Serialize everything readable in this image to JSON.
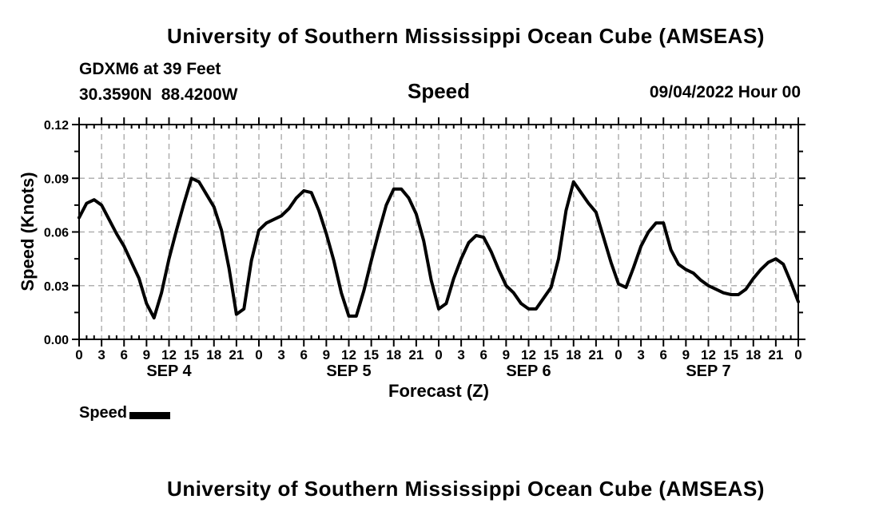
{
  "page": {
    "background": "#ffffff"
  },
  "header": {
    "main_title": "University of Southern Mississippi Ocean Cube (AMSEAS)",
    "station_name": "GDXM6 at 39 Feet",
    "station_coords": "30.3590N  88.4200W",
    "plot_title": "Speed",
    "forecast_run": "09/04/2022 Hour 00"
  },
  "footer": {
    "main_title": "University of Southern Mississippi Ocean Cube (AMSEAS)"
  },
  "legend": {
    "label": "Speed",
    "swatch_color": "#000000"
  },
  "chart_data": {
    "type": "line",
    "title": "Speed",
    "xlabel": "Forecast (Z)",
    "ylabel": "Speed (Knots)",
    "ylim": [
      0,
      0.12
    ],
    "yticks": [
      {
        "value": 0.0,
        "label": "0.00"
      },
      {
        "value": 0.03,
        "label": "0.03"
      },
      {
        "value": 0.06,
        "label": "0.06"
      },
      {
        "value": 0.09,
        "label": "0.09"
      },
      {
        "value": 0.12,
        "label": "0.12"
      }
    ],
    "y_minor_ticks": [
      0.015,
      0.045,
      0.075,
      0.105
    ],
    "x_total_hours": 96,
    "x_major_step_hours": 3,
    "x_minor_step_hours": 1,
    "xtick_labels": [
      "0",
      "3",
      "6",
      "9",
      "12",
      "15",
      "18",
      "21",
      "0",
      "3",
      "6",
      "9",
      "12",
      "15",
      "18",
      "21",
      "0",
      "3",
      "6",
      "9",
      "12",
      "15",
      "18",
      "21",
      "0",
      "3",
      "6",
      "9",
      "12",
      "15",
      "18",
      "21",
      "0"
    ],
    "day_labels": [
      {
        "label": "SEP 4",
        "center_hour": 12
      },
      {
        "label": "SEP 5",
        "center_hour": 36
      },
      {
        "label": "SEP 6",
        "center_hour": 60
      },
      {
        "label": "SEP 7",
        "center_hour": 84
      }
    ],
    "grid": {
      "color": "#b0b0b0",
      "dash": "7 5",
      "width": 1.5
    },
    "axis_color": "#000000",
    "line_width": 4,
    "legend_position": "bottom-left",
    "series": [
      {
        "name": "Speed",
        "color": "#000000",
        "x_start_hour": 0,
        "x_step_hours": 1,
        "values": [
          0.068,
          0.076,
          0.078,
          0.075,
          0.067,
          0.059,
          0.052,
          0.043,
          0.034,
          0.02,
          0.012,
          0.026,
          0.045,
          0.061,
          0.076,
          0.09,
          0.088,
          0.081,
          0.074,
          0.061,
          0.04,
          0.014,
          0.017,
          0.044,
          0.061,
          0.065,
          0.067,
          0.069,
          0.073,
          0.079,
          0.083,
          0.082,
          0.072,
          0.059,
          0.044,
          0.026,
          0.013,
          0.013,
          0.027,
          0.044,
          0.06,
          0.075,
          0.084,
          0.084,
          0.079,
          0.07,
          0.055,
          0.033,
          0.017,
          0.02,
          0.034,
          0.045,
          0.054,
          0.058,
          0.057,
          0.049,
          0.039,
          0.03,
          0.026,
          0.02,
          0.017,
          0.017,
          0.023,
          0.029,
          0.045,
          0.072,
          0.088,
          0.082,
          0.076,
          0.071,
          0.057,
          0.043,
          0.031,
          0.029,
          0.04,
          0.052,
          0.06,
          0.065,
          0.065,
          0.05,
          0.042,
          0.039,
          0.037,
          0.033,
          0.03,
          0.028,
          0.026,
          0.025,
          0.025,
          0.028,
          0.034,
          0.039,
          0.043,
          0.045,
          0.042,
          0.032,
          0.021
        ]
      }
    ]
  }
}
